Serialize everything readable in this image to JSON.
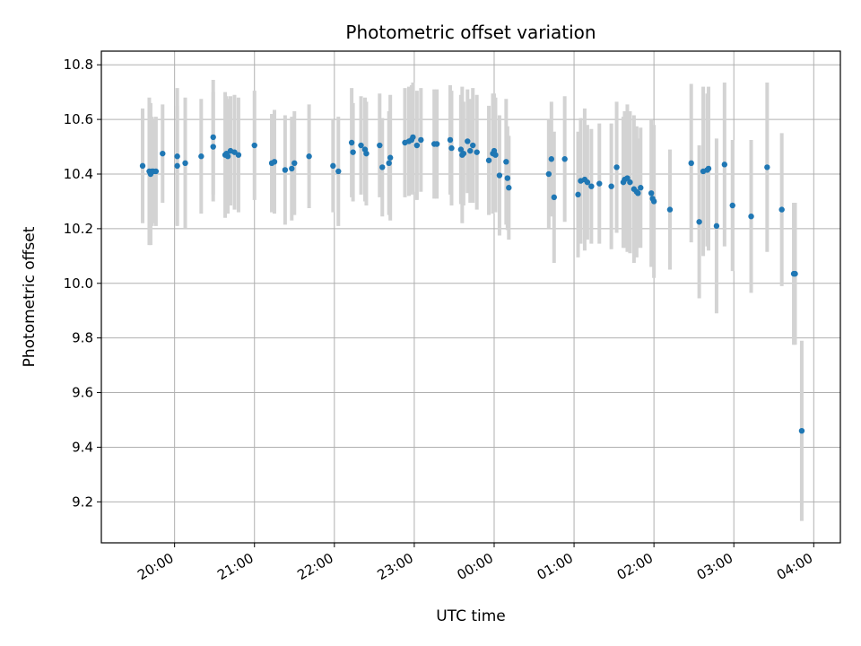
{
  "chart_data": {
    "type": "scatter",
    "title": "Photometric offset variation",
    "xlabel": "UTC time",
    "ylabel": "Photometric offset",
    "x_unit": "UTC time (HH:MM, overnight)",
    "xticks": [
      "20:00",
      "21:00",
      "22:00",
      "23:00",
      "00:00",
      "01:00",
      "02:00",
      "03:00",
      "04:00"
    ],
    "yticks": [
      "9.2",
      "9.4",
      "9.6",
      "9.8",
      "10.0",
      "10.2",
      "10.4",
      "10.6",
      "10.8"
    ],
    "xlim": [
      "19:05",
      "04:20"
    ],
    "ylim": [
      9.05,
      10.85
    ],
    "grid": true,
    "marker_color": "#1f77b4",
    "errorbar_color": "#d3d3d3",
    "series": [
      {
        "x": [
          "19:36",
          "19:41",
          "19:42",
          "19:43",
          "19:44",
          "19:46",
          "19:51",
          "20:02",
          "20:02",
          "20:08",
          "20:20",
          "20:29",
          "20:29",
          "20:38",
          "20:39",
          "20:40",
          "20:42",
          "20:45",
          "20:48",
          "21:00",
          "21:13",
          "21:15",
          "21:23",
          "21:28",
          "21:30",
          "21:41",
          "21:59",
          "22:03",
          "22:13",
          "22:14",
          "22:20",
          "22:23",
          "22:24",
          "22:34",
          "22:36",
          "22:41",
          "22:42",
          "22:53",
          "22:56",
          "22:58",
          "22:59",
          "23:02",
          "23:05",
          "23:15",
          "23:17",
          "23:27",
          "23:28",
          "23:35",
          "23:36",
          "23:37",
          "23:40",
          "23:42",
          "23:44",
          "23:47",
          "23:56",
          "23:59",
          "00:00",
          "00:01",
          "00:04",
          "00:09",
          "00:10",
          "00:11",
          "00:41",
          "00:43",
          "00:45",
          "00:53",
          "01:03",
          "01:05",
          "01:08",
          "01:10",
          "01:13",
          "01:19",
          "01:28",
          "01:32",
          "01:37",
          "01:38",
          "01:40",
          "01:42",
          "01:45",
          "01:47",
          "01:48",
          "01:50",
          "01:58",
          "01:59",
          "02:00",
          "02:12",
          "02:28",
          "02:34",
          "02:37",
          "02:40",
          "02:41",
          "02:47",
          "02:53",
          "02:59",
          "03:13",
          "03:25",
          "03:36",
          "03:45",
          "03:46",
          "03:51"
        ],
        "y": [
          10.43,
          10.41,
          10.4,
          10.41,
          10.41,
          10.41,
          10.475,
          10.43,
          10.465,
          10.44,
          10.465,
          10.535,
          10.5,
          10.47,
          10.475,
          10.465,
          10.485,
          10.48,
          10.47,
          10.505,
          10.44,
          10.445,
          10.415,
          10.42,
          10.44,
          10.465,
          10.43,
          10.41,
          10.515,
          10.48,
          10.505,
          10.49,
          10.475,
          10.505,
          10.425,
          10.44,
          10.46,
          10.515,
          10.52,
          10.525,
          10.535,
          10.505,
          10.525,
          10.51,
          10.51,
          10.525,
          10.495,
          10.49,
          10.47,
          10.475,
          10.52,
          10.485,
          10.505,
          10.48,
          10.45,
          10.475,
          10.485,
          10.47,
          10.395,
          10.445,
          10.385,
          10.35,
          10.4,
          10.455,
          10.315,
          10.455,
          10.325,
          10.375,
          10.38,
          10.37,
          10.355,
          10.365,
          10.355,
          10.425,
          10.37,
          10.38,
          10.385,
          10.37,
          10.345,
          10.335,
          10.33,
          10.35,
          10.33,
          10.31,
          10.3,
          10.27,
          10.44,
          10.225,
          10.41,
          10.415,
          10.42,
          10.21,
          10.435,
          10.285,
          10.245,
          10.425,
          10.27,
          10.035,
          10.035,
          9.46
        ],
        "yerr": [
          0.21,
          0.27,
          0.26,
          0.2,
          0.19,
          0.2,
          0.18,
          0.22,
          0.25,
          0.24,
          0.21,
          0.21,
          0.2,
          0.23,
          0.21,
          0.21,
          0.2,
          0.21,
          0.21,
          0.2,
          0.18,
          0.19,
          0.2,
          0.19,
          0.19,
          0.19,
          0.17,
          0.2,
          0.2,
          0.18,
          0.18,
          0.19,
          0.19,
          0.19,
          0.18,
          0.19,
          0.23,
          0.2,
          0.2,
          0.2,
          0.2,
          0.2,
          0.19,
          0.2,
          0.2,
          0.2,
          0.21,
          0.2,
          0.25,
          0.19,
          0.19,
          0.19,
          0.21,
          0.21,
          0.2,
          0.22,
          0.21,
          0.21,
          0.22,
          0.23,
          0.19,
          0.19,
          0.2,
          0.21,
          0.24,
          0.23,
          0.23,
          0.23,
          0.26,
          0.21,
          0.21,
          0.22,
          0.23,
          0.24,
          0.24,
          0.25,
          0.27,
          0.26,
          0.27,
          0.24,
          0.2,
          0.22,
          0.27,
          0.25,
          0.28,
          0.22,
          0.29,
          0.28,
          0.31,
          0.28,
          0.3,
          0.32,
          0.3,
          0.24,
          0.28,
          0.31,
          0.28,
          0.26,
          0.26,
          0.33
        ]
      }
    ]
  }
}
